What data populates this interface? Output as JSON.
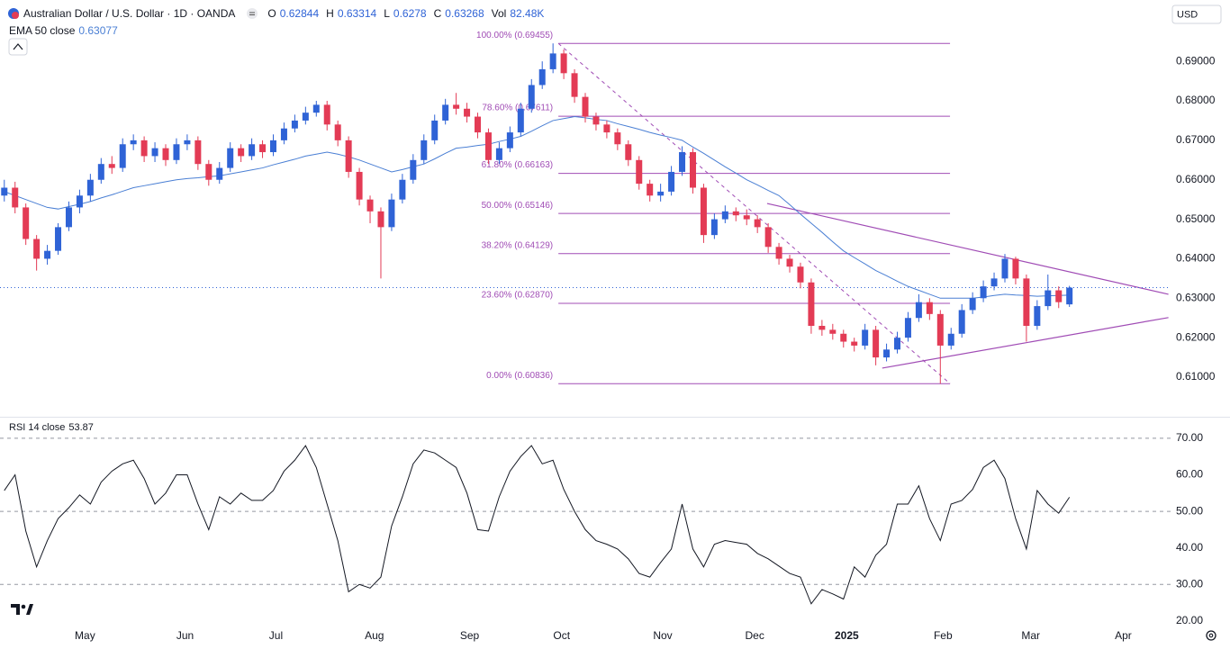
{
  "chart_data": [
    {
      "type": "candlestick",
      "title": "Australian Dollar / U.S. Dollar · 1D · OANDA",
      "ohlc_labels": [
        "O",
        "H",
        "L",
        "C"
      ],
      "volume_label": "Vol",
      "volume": "82.48K",
      "currency": "USD",
      "up_color": "#2f63d6",
      "down_color": "#e33b55",
      "xlim": [
        -0.4,
        108.4
      ],
      "ylim": [
        0.6002,
        0.6987
      ],
      "yticks": [
        {
          "value": 0.61,
          "label": "0.61000"
        },
        {
          "value": 0.62,
          "label": "0.62000"
        },
        {
          "value": 0.63,
          "label": "0.63000"
        },
        {
          "value": 0.64,
          "label": "0.64000"
        },
        {
          "value": 0.65,
          "label": "0.65000"
        },
        {
          "value": 0.66,
          "label": "0.66000"
        },
        {
          "value": 0.67,
          "label": "0.67000"
        },
        {
          "value": 0.68,
          "label": "0.68000"
        },
        {
          "value": 0.69,
          "label": "0.69000"
        }
      ],
      "grid": false,
      "open": [
        0.656,
        0.658,
        0.653,
        0.645,
        0.64,
        0.642,
        0.648,
        0.653,
        0.656,
        0.66,
        0.664,
        0.663,
        0.669,
        0.67,
        0.666,
        0.668,
        0.665,
        0.669,
        0.67,
        0.664,
        0.66,
        0.663,
        0.668,
        0.666,
        0.669,
        0.667,
        0.67,
        0.673,
        0.675,
        0.677,
        0.679,
        0.674,
        0.67,
        0.662,
        0.655,
        0.652,
        0.648,
        0.655,
        0.66,
        0.665,
        0.67,
        0.675,
        0.679,
        0.678,
        0.676,
        0.672,
        0.665,
        0.668,
        0.672,
        0.678,
        0.684,
        0.688,
        0.692,
        0.687,
        0.681,
        0.676,
        0.674,
        0.672,
        0.669,
        0.665,
        0.659,
        0.656,
        0.657,
        0.662,
        0.667,
        0.658,
        0.646,
        0.65,
        0.652,
        0.651,
        0.65,
        0.648,
        0.643,
        0.64,
        0.638,
        0.634,
        0.623,
        0.622,
        0.621,
        0.619,
        0.618,
        0.622,
        0.615,
        0.617,
        0.62,
        0.625,
        0.629,
        0.626,
        0.618,
        0.621,
        0.627,
        0.63,
        0.633,
        0.635,
        0.64,
        0.635,
        0.623,
        0.628,
        0.632,
        0.62844
      ],
      "high": [
        0.66,
        0.6595,
        0.654,
        0.646,
        0.6435,
        0.649,
        0.6545,
        0.6575,
        0.6615,
        0.6655,
        0.666,
        0.6705,
        0.6715,
        0.671,
        0.6695,
        0.669,
        0.6705,
        0.6715,
        0.671,
        0.665,
        0.6645,
        0.6695,
        0.669,
        0.6705,
        0.67,
        0.6715,
        0.6745,
        0.6765,
        0.6785,
        0.68,
        0.68,
        0.675,
        0.671,
        0.663,
        0.656,
        0.653,
        0.6565,
        0.6615,
        0.6665,
        0.6715,
        0.6765,
        0.6805,
        0.682,
        0.6795,
        0.677,
        0.673,
        0.6695,
        0.6735,
        0.6795,
        0.6855,
        0.69,
        0.69455,
        0.693,
        0.688,
        0.682,
        0.677,
        0.675,
        0.673,
        0.67,
        0.666,
        0.66,
        0.659,
        0.6635,
        0.6685,
        0.668,
        0.659,
        0.6515,
        0.6535,
        0.653,
        0.6525,
        0.651,
        0.649,
        0.644,
        0.641,
        0.639,
        0.635,
        0.6245,
        0.6235,
        0.622,
        0.62,
        0.6235,
        0.623,
        0.6185,
        0.6215,
        0.6265,
        0.631,
        0.63,
        0.627,
        0.6225,
        0.6285,
        0.6315,
        0.6345,
        0.6365,
        0.6412,
        0.6405,
        0.636,
        0.6295,
        0.636,
        0.633,
        0.63314
      ],
      "low": [
        0.6545,
        0.6515,
        0.6435,
        0.637,
        0.6385,
        0.641,
        0.647,
        0.6515,
        0.6545,
        0.659,
        0.6615,
        0.662,
        0.6675,
        0.6645,
        0.6645,
        0.6635,
        0.664,
        0.6675,
        0.6625,
        0.6585,
        0.659,
        0.662,
        0.6645,
        0.665,
        0.6655,
        0.666,
        0.669,
        0.672,
        0.674,
        0.676,
        0.6725,
        0.6685,
        0.6605,
        0.6535,
        0.649,
        0.635,
        0.647,
        0.654,
        0.659,
        0.664,
        0.669,
        0.674,
        0.6765,
        0.6745,
        0.6705,
        0.664,
        0.664,
        0.667,
        0.671,
        0.677,
        0.683,
        0.687,
        0.6855,
        0.6795,
        0.6745,
        0.6725,
        0.6705,
        0.6675,
        0.6635,
        0.6575,
        0.6545,
        0.6545,
        0.656,
        0.661,
        0.6565,
        0.644,
        0.645,
        0.649,
        0.6495,
        0.6485,
        0.6465,
        0.6415,
        0.6385,
        0.6365,
        0.6325,
        0.621,
        0.6205,
        0.6195,
        0.6175,
        0.6165,
        0.617,
        0.613,
        0.614,
        0.616,
        0.619,
        0.624,
        0.6245,
        0.60836,
        0.617,
        0.62,
        0.626,
        0.629,
        0.632,
        0.634,
        0.6335,
        0.619,
        0.622,
        0.627,
        0.6275,
        0.6278
      ],
      "close": [
        0.658,
        0.653,
        0.645,
        0.64,
        0.642,
        0.648,
        0.653,
        0.656,
        0.66,
        0.664,
        0.663,
        0.669,
        0.67,
        0.666,
        0.668,
        0.665,
        0.669,
        0.67,
        0.664,
        0.66,
        0.663,
        0.668,
        0.666,
        0.669,
        0.667,
        0.67,
        0.673,
        0.675,
        0.677,
        0.679,
        0.674,
        0.67,
        0.662,
        0.655,
        0.652,
        0.648,
        0.655,
        0.66,
        0.665,
        0.67,
        0.675,
        0.679,
        0.678,
        0.676,
        0.672,
        0.665,
        0.668,
        0.672,
        0.678,
        0.684,
        0.688,
        0.692,
        0.687,
        0.681,
        0.676,
        0.674,
        0.672,
        0.669,
        0.665,
        0.659,
        0.656,
        0.657,
        0.662,
        0.667,
        0.658,
        0.646,
        0.65,
        0.652,
        0.651,
        0.65,
        0.648,
        0.643,
        0.64,
        0.638,
        0.634,
        0.623,
        0.622,
        0.621,
        0.619,
        0.618,
        0.622,
        0.615,
        0.617,
        0.62,
        0.625,
        0.629,
        0.626,
        0.618,
        0.621,
        0.627,
        0.63,
        0.633,
        0.635,
        0.64,
        0.635,
        0.623,
        0.628,
        0.632,
        0.629,
        0.63268
      ],
      "series": [
        {
          "name": "EMA 50 close",
          "color": "#4a7fd4",
          "values": [
            0.657,
            0.656,
            0.655,
            0.654,
            0.653,
            0.6526,
            0.6532,
            0.6538,
            0.6545,
            0.6554,
            0.6562,
            0.6571,
            0.658,
            0.6585,
            0.659,
            0.6595,
            0.66,
            0.6603,
            0.6605,
            0.6608,
            0.661,
            0.6615,
            0.662,
            0.6625,
            0.663,
            0.6638,
            0.6645,
            0.6652,
            0.666,
            0.6665,
            0.667,
            0.6665,
            0.6658,
            0.665,
            0.664,
            0.663,
            0.662,
            0.6626,
            0.6633,
            0.664,
            0.6653,
            0.6667,
            0.668,
            0.6683,
            0.6687,
            0.669,
            0.6697,
            0.6703,
            0.671,
            0.6723,
            0.6737,
            0.675,
            0.6755,
            0.676,
            0.6757,
            0.6753,
            0.675,
            0.6742,
            0.6735,
            0.6728,
            0.672,
            0.6713,
            0.6707,
            0.67,
            0.6683,
            0.6667,
            0.665,
            0.6633,
            0.6617,
            0.66,
            0.6587,
            0.6573,
            0.656,
            0.6537,
            0.6513,
            0.649,
            0.6467,
            0.6443,
            0.642,
            0.6403,
            0.6387,
            0.637,
            0.6357,
            0.6343,
            0.633,
            0.632,
            0.631,
            0.63,
            0.63,
            0.63,
            0.63,
            0.6303,
            0.6307,
            0.631,
            0.6308,
            0.6307,
            0.6305,
            0.6306,
            0.6307,
            0.63077
          ]
        }
      ],
      "fib_color": "#a04cb5",
      "fib_range": [
        51.5,
        87.9
      ],
      "fib_levels": [
        {
          "label": "100.00% (0.69455)",
          "value": 0.69455
        },
        {
          "label": "78.60% (0.67611)",
          "value": 0.67611
        },
        {
          "label": "61.80% (0.66163)",
          "value": 0.66163
        },
        {
          "label": "50.00% (0.65146)",
          "value": 0.65146
        },
        {
          "label": "38.20% (0.64129)",
          "value": 0.64129
        },
        {
          "label": "23.60% (0.62870)",
          "value": 0.6287
        },
        {
          "label": "0.00% (0.60836)",
          "value": 0.60836
        }
      ],
      "trendline_color": "#a04cb5",
      "trendlines": [
        {
          "x": [
            70.9,
            108.2
          ],
          "y": [
            0.654,
            0.631
          ]
        },
        {
          "x": [
            81.6,
            108.2
          ],
          "y": [
            0.6123,
            0.6251
          ]
        }
      ]
    },
    {
      "type": "line",
      "xlim": [
        -0.4,
        108.4
      ],
      "ylim": [
        17.5,
        75.4
      ],
      "yticks": [
        {
          "value": 20,
          "label": "20.00"
        },
        {
          "value": 30,
          "label": "30.00"
        },
        {
          "value": 40,
          "label": "40.00"
        },
        {
          "value": 50,
          "label": "50.00"
        },
        {
          "value": 60,
          "label": "60.00"
        },
        {
          "value": 70,
          "label": "70.00"
        }
      ],
      "levels": [
        30,
        50,
        70
      ],
      "xticks": [
        {
          "value": 7.5,
          "label": "May"
        },
        {
          "value": 16.8,
          "label": "Jun"
        },
        {
          "value": 25.25,
          "label": "Jul"
        },
        {
          "value": 34.4,
          "label": "Aug"
        },
        {
          "value": 43.25,
          "label": "Sep"
        },
        {
          "value": 51.8,
          "label": "Oct"
        },
        {
          "value": 61.2,
          "label": "Nov"
        },
        {
          "value": 69.75,
          "label": "Dec"
        },
        {
          "value": 78.3,
          "label": "2025"
        },
        {
          "value": 87.25,
          "label": "Feb"
        },
        {
          "value": 95.4,
          "label": "Mar"
        },
        {
          "value": 104,
          "label": "Apr"
        }
      ],
      "series": [
        {
          "name": "RSI 14 close",
          "color": "#131722",
          "values": [
            55.7,
            60,
            44.6,
            34.8,
            42,
            48,
            51,
            54.5,
            52,
            58,
            61,
            63,
            64,
            59,
            52,
            55,
            60,
            60,
            52,
            45,
            54,
            52,
            55,
            53,
            53,
            55.7,
            61,
            64,
            68,
            62,
            52,
            42,
            28,
            30,
            29,
            32,
            46,
            54,
            63,
            66.8,
            66,
            64,
            62,
            55,
            45,
            44.6,
            54,
            61,
            65,
            68,
            63,
            64,
            56,
            50,
            45,
            42,
            41,
            39.7,
            37,
            33,
            32,
            36,
            39.7,
            52,
            39.7,
            34.8,
            41,
            42,
            41.5,
            41,
            38.5,
            37,
            35,
            33,
            32,
            24.7,
            28.6,
            27.4,
            26,
            34.8,
            32,
            38,
            41,
            52,
            52,
            57,
            48,
            42,
            52,
            53,
            56,
            62,
            64,
            59,
            48,
            39.7,
            55.7,
            52,
            49.5,
            53.87
          ]
        }
      ]
    }
  ]
}
